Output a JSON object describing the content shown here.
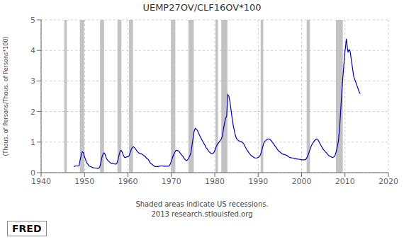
{
  "chart_data": {
    "type": "line",
    "title": "UEMP27OV/CLF16OV*100",
    "ylabel": "(Thous. of Persons/Thous. of Persons*100)",
    "annotations": [
      "Shaded areas indicate US recessions.\n2013 research.stlouisfed.org",
      "FRED"
    ],
    "xlim": [
      1940,
      2020
    ],
    "ylim": [
      0,
      5
    ],
    "xticks": [
      1940,
      1950,
      1960,
      1970,
      1980,
      1990,
      2000,
      2010,
      2020
    ],
    "yticks": [
      0,
      1,
      2,
      3,
      4,
      5
    ],
    "grid": true,
    "color": "#0000bb",
    "shaded_ranges": [
      [
        1945.33,
        1945.92
      ],
      [
        1948.92,
        1949.92
      ],
      [
        1953.58,
        1954.5
      ],
      [
        1957.58,
        1958.5
      ],
      [
        1960.25,
        1961.17
      ],
      [
        1969.92,
        1970.92
      ],
      [
        1973.92,
        1975.17
      ],
      [
        1980.17,
        1980.75
      ],
      [
        1981.5,
        1982.92
      ],
      [
        1990.58,
        1991.17
      ],
      [
        2001.17,
        2001.92
      ],
      [
        2007.92,
        2009.5
      ]
    ],
    "shade_color": "#b8b8b8",
    "x": [
      1947.5,
      1948.0,
      1948.25,
      1948.5,
      1948.75,
      1949.0,
      1949.25,
      1949.5,
      1949.75,
      1950.0,
      1950.25,
      1950.5,
      1950.75,
      1951.0,
      1951.5,
      1952.0,
      1952.5,
      1953.0,
      1953.25,
      1953.5,
      1953.75,
      1954.0,
      1954.25,
      1954.5,
      1954.75,
      1955.0,
      1955.25,
      1955.5,
      1955.75,
      1956.0,
      1956.25,
      1956.5,
      1956.75,
      1957.0,
      1957.25,
      1957.5,
      1957.75,
      1958.0,
      1958.25,
      1958.5,
      1958.75,
      1959.0,
      1959.25,
      1959.5,
      1959.75,
      1960.0,
      1960.25,
      1960.5,
      1960.75,
      1961.0,
      1961.25,
      1961.5,
      1961.75,
      1962.0,
      1962.25,
      1962.5,
      1962.75,
      1963.0,
      1963.25,
      1963.5,
      1963.75,
      1964.0,
      1964.25,
      1964.5,
      1964.75,
      1965.0,
      1965.25,
      1965.5,
      1965.75,
      1966.0,
      1966.25,
      1966.5,
      1966.75,
      1967.0,
      1967.25,
      1967.5,
      1967.75,
      1968.0,
      1968.25,
      1968.5,
      1968.75,
      1969.0,
      1969.25,
      1969.5,
      1969.75,
      1970.0,
      1970.25,
      1970.5,
      1970.75,
      1971.0,
      1971.25,
      1971.5,
      1971.75,
      1972.0,
      1972.25,
      1972.5,
      1972.75,
      1973.0,
      1973.25,
      1973.5,
      1973.75,
      1974.0,
      1974.25,
      1974.5,
      1974.75,
      1975.0,
      1975.25,
      1975.5,
      1975.75,
      1976.0,
      1976.25,
      1976.5,
      1976.75,
      1977.0,
      1977.25,
      1977.5,
      1977.75,
      1978.0,
      1978.25,
      1978.5,
      1978.75,
      1979.0,
      1979.25,
      1979.5,
      1979.75,
      1980.0,
      1980.25,
      1980.5,
      1980.75,
      1981.0,
      1981.25,
      1981.5,
      1981.75,
      1982.0,
      1982.25,
      1982.5,
      1982.75,
      1983.0,
      1983.25,
      1983.5,
      1983.75,
      1984.0,
      1984.25,
      1984.5,
      1984.75,
      1985.0,
      1985.25,
      1985.5,
      1985.75,
      1986.0,
      1986.25,
      1986.5,
      1986.75,
      1987.0,
      1987.25,
      1987.5,
      1987.75,
      1988.0,
      1988.25,
      1988.5,
      1988.75,
      1989.0,
      1989.25,
      1989.5,
      1989.75,
      1990.0,
      1990.25,
      1990.5,
      1990.75,
      1991.0,
      1991.25,
      1991.5,
      1991.75,
      1992.0,
      1992.25,
      1992.5,
      1992.75,
      1993.0,
      1993.25,
      1993.5,
      1993.75,
      1994.0,
      1994.25,
      1994.5,
      1994.75,
      1995.0,
      1995.25,
      1995.5,
      1995.75,
      1996.0,
      1996.25,
      1996.5,
      1996.75,
      1997.0,
      1997.25,
      1997.5,
      1997.75,
      1998.0,
      1998.25,
      1998.5,
      1998.75,
      1999.0,
      1999.25,
      1999.5,
      1999.75,
      2000.0,
      2000.25,
      2000.5,
      2000.75,
      2001.0,
      2001.25,
      2001.5,
      2001.75,
      2002.0,
      2002.25,
      2002.5,
      2002.75,
      2003.0,
      2003.25,
      2003.5,
      2003.75,
      2004.0,
      2004.25,
      2004.5,
      2004.75,
      2005.0,
      2005.25,
      2005.5,
      2005.75,
      2006.0,
      2006.25,
      2006.5,
      2006.75,
      2007.0,
      2007.25,
      2007.5,
      2007.75,
      2008.0,
      2008.25,
      2008.5,
      2008.75,
      2009.0,
      2009.25,
      2009.5,
      2009.75,
      2010.0,
      2010.1,
      2010.2,
      2010.3,
      2010.4,
      2010.5,
      2010.6,
      2010.7,
      2010.8,
      2010.9,
      2011.0,
      2011.1,
      2011.2,
      2011.3,
      2011.4,
      2011.5,
      2011.6,
      2011.7,
      2011.8,
      2011.9,
      2012.0,
      2012.25,
      2012.5,
      2012.75,
      2013.0,
      2013.25,
      2013.5
    ],
    "values": [
      0.2,
      0.22,
      0.22,
      0.22,
      0.23,
      0.42,
      0.58,
      0.68,
      0.65,
      0.52,
      0.42,
      0.32,
      0.28,
      0.22,
      0.19,
      0.16,
      0.15,
      0.14,
      0.14,
      0.18,
      0.32,
      0.5,
      0.6,
      0.65,
      0.6,
      0.48,
      0.42,
      0.38,
      0.35,
      0.32,
      0.3,
      0.3,
      0.3,
      0.28,
      0.28,
      0.32,
      0.45,
      0.6,
      0.72,
      0.72,
      0.65,
      0.55,
      0.5,
      0.5,
      0.52,
      0.52,
      0.55,
      0.65,
      0.75,
      0.82,
      0.85,
      0.82,
      0.78,
      0.72,
      0.68,
      0.65,
      0.62,
      0.62,
      0.6,
      0.58,
      0.55,
      0.52,
      0.48,
      0.45,
      0.42,
      0.35,
      0.3,
      0.28,
      0.25,
      0.22,
      0.2,
      0.2,
      0.2,
      0.2,
      0.21,
      0.22,
      0.22,
      0.22,
      0.21,
      0.21,
      0.21,
      0.21,
      0.21,
      0.22,
      0.28,
      0.38,
      0.48,
      0.58,
      0.65,
      0.72,
      0.73,
      0.72,
      0.7,
      0.65,
      0.6,
      0.56,
      0.52,
      0.45,
      0.42,
      0.4,
      0.42,
      0.48,
      0.55,
      0.65,
      0.88,
      1.12,
      1.35,
      1.45,
      1.42,
      1.38,
      1.3,
      1.22,
      1.15,
      1.08,
      1.02,
      0.95,
      0.9,
      0.82,
      0.78,
      0.72,
      0.68,
      0.65,
      0.62,
      0.62,
      0.65,
      0.72,
      0.82,
      0.9,
      0.95,
      1.0,
      1.05,
      1.1,
      1.2,
      1.42,
      1.62,
      1.78,
      1.85,
      2.55,
      2.5,
      2.32,
      2.05,
      1.78,
      1.55,
      1.38,
      1.22,
      1.12,
      1.08,
      1.05,
      1.02,
      1.02,
      1.0,
      0.98,
      0.92,
      0.85,
      0.78,
      0.72,
      0.68,
      0.62,
      0.58,
      0.55,
      0.52,
      0.5,
      0.48,
      0.48,
      0.48,
      0.5,
      0.52,
      0.58,
      0.68,
      0.82,
      0.95,
      1.02,
      1.05,
      1.08,
      1.1,
      1.1,
      1.08,
      1.05,
      1.0,
      0.95,
      0.9,
      0.85,
      0.8,
      0.75,
      0.7,
      0.68,
      0.65,
      0.62,
      0.6,
      0.6,
      0.58,
      0.57,
      0.55,
      0.52,
      0.5,
      0.49,
      0.48,
      0.48,
      0.47,
      0.46,
      0.45,
      0.45,
      0.44,
      0.44,
      0.43,
      0.42,
      0.42,
      0.42,
      0.42,
      0.44,
      0.5,
      0.58,
      0.68,
      0.78,
      0.88,
      0.95,
      1.0,
      1.05,
      1.08,
      1.1,
      1.08,
      1.02,
      0.95,
      0.88,
      0.82,
      0.76,
      0.72,
      0.68,
      0.65,
      0.6,
      0.56,
      0.54,
      0.52,
      0.5,
      0.5,
      0.52,
      0.58,
      0.7,
      0.85,
      1.05,
      1.45,
      2.0,
      2.62,
      3.1,
      3.55,
      3.98,
      4.08,
      4.22,
      4.38,
      4.3,
      4.15,
      4.0,
      3.95,
      3.98,
      4.02,
      4.0,
      4.0,
      3.95,
      3.85,
      3.75,
      3.65,
      3.55,
      3.45,
      3.35,
      3.25,
      3.15,
      3.05,
      2.95,
      2.85,
      2.75,
      2.65,
      2.58
    ]
  }
}
